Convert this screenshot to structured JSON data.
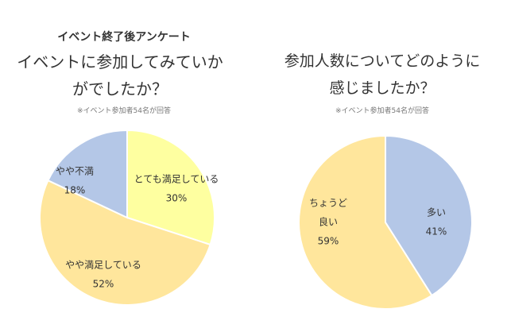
{
  "header": {
    "title": "イベント終了後アンケート"
  },
  "charts": [
    {
      "question_line1": "イベントに参加してみていか",
      "question_line2": "がでしたか？",
      "note": "※イベント参加者54名が回答"
    },
    {
      "question_line1": "参加人数についてどのように",
      "question_line2": "感じましたか？",
      "note": "※イベント参加者54名が回答"
    }
  ],
  "chart_data": [
    {
      "type": "pie",
      "title": "イベントに参加してみていかがでしたか？",
      "slices": [
        {
          "label": "とても満足している",
          "value": 30,
          "display": "30%",
          "color": "#FEFFA0"
        },
        {
          "label": "やや満足している",
          "value": 52,
          "display": "52%",
          "color": "#FFE69C"
        },
        {
          "label": "やや不満",
          "value": 18,
          "display": "18%",
          "color": "#B4C7E7"
        }
      ]
    },
    {
      "type": "pie",
      "title": "参加人数についてどのように感じましたか？",
      "slices": [
        {
          "label": "多い",
          "value": 41,
          "display": "41%",
          "color": "#B4C7E7"
        },
        {
          "label": "ちょうど良い",
          "value": 59,
          "display": "59%",
          "color": "#FFE69C"
        }
      ]
    }
  ]
}
